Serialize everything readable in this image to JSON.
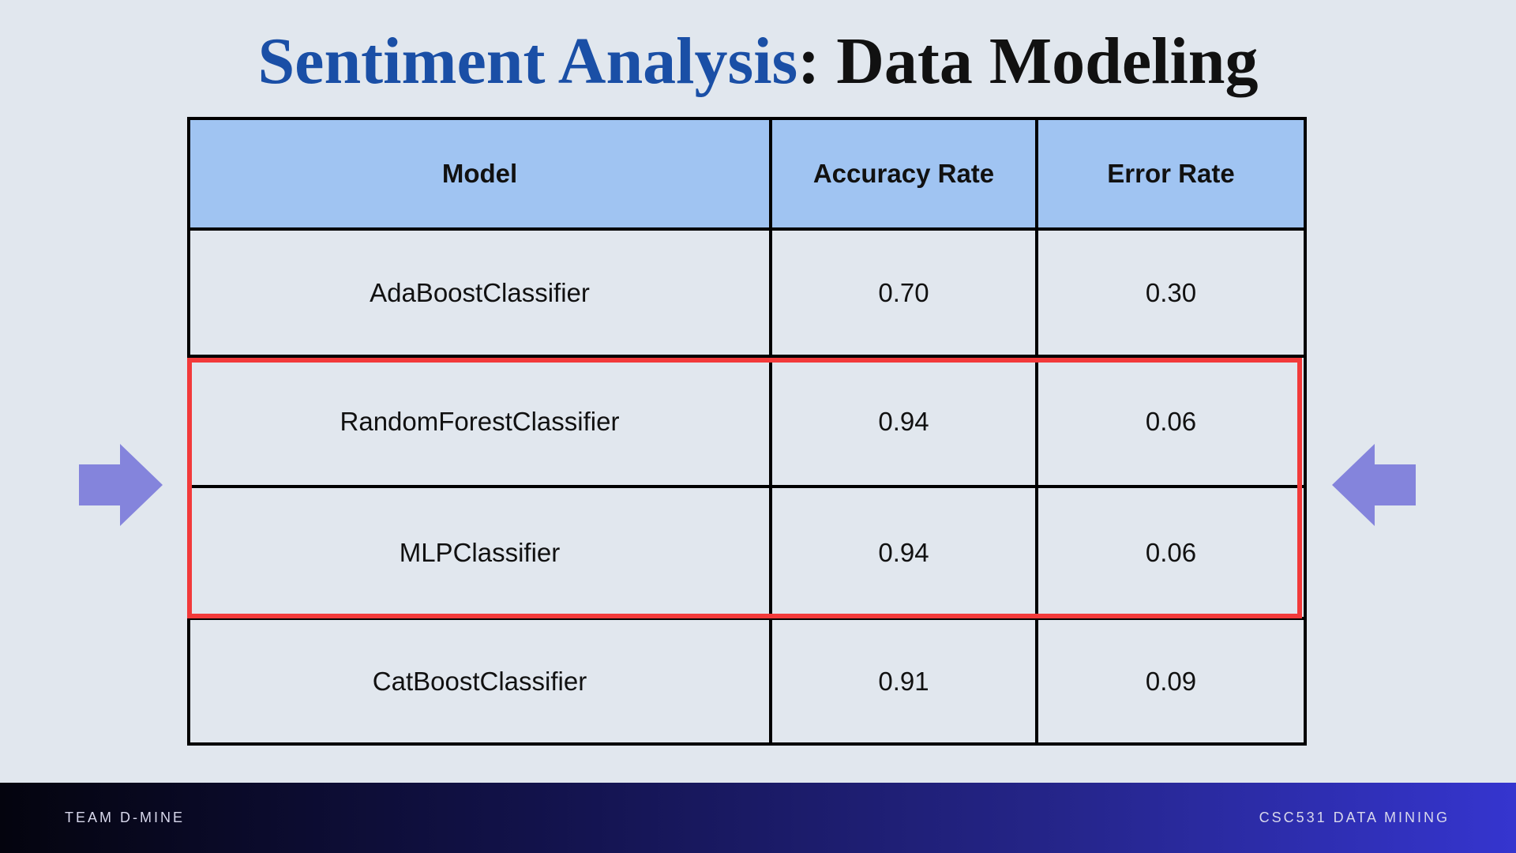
{
  "slide": {
    "title_accent": "Sentiment Analysis",
    "title_rest": ": Data Modeling"
  },
  "table": {
    "headers": [
      "Model",
      "Accuracy Rate",
      "Error Rate"
    ],
    "rows": [
      {
        "model": "AdaBoostClassifier",
        "accuracy": "0.70",
        "error": "0.30"
      },
      {
        "model": "RandomForestClassifier",
        "accuracy": "0.94",
        "error": "0.06"
      },
      {
        "model": "MLPClassifier",
        "accuracy": "0.94",
        "error": "0.06"
      },
      {
        "model": "CatBoostClassifier",
        "accuracy": "0.91",
        "error": "0.09"
      }
    ],
    "highlighted_rows": [
      1,
      2
    ]
  },
  "arrows": {
    "left_icon": "arrow-right-icon",
    "right_icon": "arrow-left-icon",
    "color": "#8484dc"
  },
  "footer": {
    "left": "TEAM D-MINE",
    "right": "CSC531 DATA MINING"
  },
  "colors": {
    "title_accent": "#1a4fa6",
    "header_bg": "#a0c4f2",
    "highlight_border": "#f23a3a",
    "background": "#e1e7ee"
  }
}
